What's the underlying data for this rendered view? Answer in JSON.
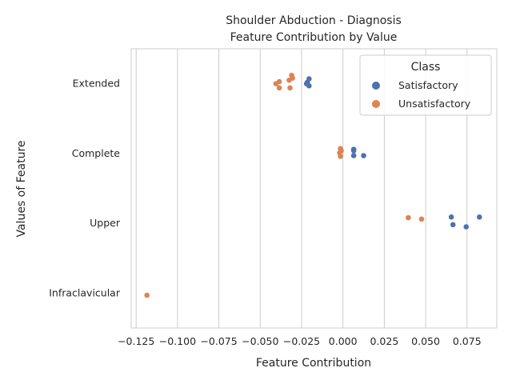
{
  "chart_data": {
    "type": "scatter",
    "title_line1": "Shoulder Abduction - Diagnosis",
    "title_line2": "Feature Contribution by Value",
    "xlabel": "Feature Contribution",
    "ylabel": "Values of Feature",
    "xlim": [
      -0.128,
      0.093
    ],
    "x_ticks": [
      -0.125,
      -0.1,
      -0.075,
      -0.05,
      -0.025,
      0.0,
      0.025,
      0.05,
      0.075
    ],
    "x_tick_labels": [
      "−0.125",
      "−0.100",
      "−0.075",
      "−0.050",
      "−0.025",
      "0.000",
      "0.025",
      "0.050",
      "0.075"
    ],
    "categories": [
      "Extended",
      "Complete",
      "Upper",
      "Infraclavicular"
    ],
    "grid": "vertical",
    "legend": {
      "title": "Class",
      "placement": "top-right",
      "entries": [
        {
          "label": "Satisfactory",
          "color": "#4c72b0"
        },
        {
          "label": "Unsatisfactory",
          "color": "#dd8452"
        }
      ]
    },
    "series": [
      {
        "name": "Satisfactory",
        "color": "#4c72b0",
        "points": [
          {
            "category": "Extended",
            "x": -0.0205,
            "jitter": -0.07
          },
          {
            "category": "Extended",
            "x": -0.022,
            "jitter": 0.0
          },
          {
            "category": "Extended",
            "x": -0.0205,
            "jitter": 0.03
          },
          {
            "category": "Extended",
            "x": -0.0215,
            "jitter": -0.02
          },
          {
            "category": "Complete",
            "x": 0.0065,
            "jitter": -0.06
          },
          {
            "category": "Complete",
            "x": 0.0065,
            "jitter": -0.04
          },
          {
            "category": "Complete",
            "x": 0.0065,
            "jitter": 0.03
          },
          {
            "category": "Complete",
            "x": 0.0125,
            "jitter": 0.03
          },
          {
            "category": "Upper",
            "x": 0.0655,
            "jitter": -0.09
          },
          {
            "category": "Upper",
            "x": 0.0825,
            "jitter": -0.09
          },
          {
            "category": "Upper",
            "x": 0.0665,
            "jitter": 0.02
          },
          {
            "category": "Upper",
            "x": 0.0745,
            "jitter": 0.05
          }
        ]
      },
      {
        "name": "Unsatisfactory",
        "color": "#dd8452",
        "points": [
          {
            "category": "Extended",
            "x": -0.031,
            "jitter": -0.12
          },
          {
            "category": "Extended",
            "x": -0.0305,
            "jitter": -0.08
          },
          {
            "category": "Extended",
            "x": -0.0325,
            "jitter": -0.05
          },
          {
            "category": "Extended",
            "x": -0.0385,
            "jitter": -0.03
          },
          {
            "category": "Extended",
            "x": -0.0405,
            "jitter": 0.0
          },
          {
            "category": "Extended",
            "x": -0.0385,
            "jitter": 0.06
          },
          {
            "category": "Extended",
            "x": -0.032,
            "jitter": 0.06
          },
          {
            "category": "Complete",
            "x": -0.0015,
            "jitter": -0.07
          },
          {
            "category": "Complete",
            "x": -0.001,
            "jitter": -0.04
          },
          {
            "category": "Complete",
            "x": -0.002,
            "jitter": -0.01
          },
          {
            "category": "Complete",
            "x": -0.0015,
            "jitter": 0.04
          },
          {
            "category": "Upper",
            "x": 0.0395,
            "jitter": -0.08
          },
          {
            "category": "Upper",
            "x": 0.0475,
            "jitter": -0.06
          },
          {
            "category": "Infraclavicular",
            "x": -0.1185,
            "jitter": 0.03
          }
        ]
      }
    ]
  }
}
